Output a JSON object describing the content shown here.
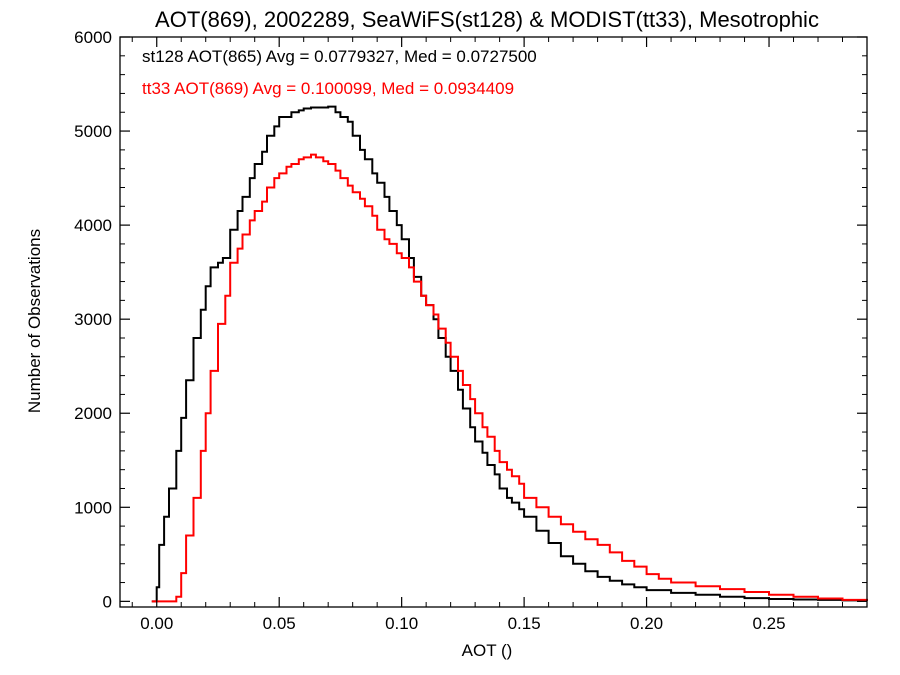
{
  "chart_data": {
    "type": "line",
    "title": "AOT(869), 2002289, SeaWiFS(st128) & MODIST(tt33), Mesotrophic",
    "xlabel": "AOT ()",
    "ylabel": "Number of Observations",
    "xlim": [
      -0.015,
      0.29
    ],
    "ylim": [
      -60,
      6000
    ],
    "xticks": [
      0.0,
      0.05,
      0.1,
      0.15,
      0.2,
      0.25
    ],
    "xtick_labels": [
      "0.00",
      "0.05",
      "0.10",
      "0.15",
      "0.20",
      "0.25"
    ],
    "yticks": [
      0,
      1000,
      2000,
      3000,
      4000,
      5000,
      6000
    ],
    "ytick_labels": [
      "0",
      "1000",
      "2000",
      "3000",
      "4000",
      "5000",
      "6000"
    ],
    "step": "histogram",
    "series": [
      {
        "name": "st128 AOT(865) Avg = 0.0779327, Med = 0.0727500",
        "color": "#000000",
        "x": [
          -0.002,
          0.0,
          0.001,
          0.003,
          0.005,
          0.008,
          0.01,
          0.012,
          0.015,
          0.018,
          0.02,
          0.022,
          0.025,
          0.027,
          0.03,
          0.033,
          0.035,
          0.038,
          0.04,
          0.043,
          0.045,
          0.048,
          0.05,
          0.052,
          0.055,
          0.058,
          0.06,
          0.063,
          0.065,
          0.068,
          0.07,
          0.073,
          0.075,
          0.078,
          0.08,
          0.083,
          0.085,
          0.088,
          0.09,
          0.093,
          0.095,
          0.098,
          0.1,
          0.103,
          0.105,
          0.108,
          0.11,
          0.113,
          0.115,
          0.118,
          0.12,
          0.123,
          0.125,
          0.128,
          0.13,
          0.133,
          0.135,
          0.138,
          0.14,
          0.143,
          0.145,
          0.148,
          0.15,
          0.155,
          0.16,
          0.165,
          0.17,
          0.175,
          0.18,
          0.185,
          0.19,
          0.195,
          0.2,
          0.21,
          0.22,
          0.23,
          0.24,
          0.25,
          0.26,
          0.27,
          0.28,
          0.29
        ],
        "y": [
          0,
          150,
          600,
          900,
          1200,
          1600,
          1950,
          2350,
          2800,
          3100,
          3350,
          3550,
          3600,
          3650,
          3950,
          4150,
          4300,
          4500,
          4650,
          4780,
          4950,
          5050,
          5150,
          5150,
          5200,
          5220,
          5240,
          5250,
          5250,
          5250,
          5260,
          5200,
          5150,
          5100,
          4950,
          4800,
          4700,
          4550,
          4450,
          4300,
          4150,
          4000,
          3850,
          3650,
          3450,
          3250,
          3150,
          3000,
          2800,
          2600,
          2450,
          2250,
          2050,
          1850,
          1700,
          1580,
          1450,
          1350,
          1200,
          1100,
          1050,
          980,
          900,
          750,
          620,
          480,
          400,
          320,
          260,
          220,
          180,
          150,
          120,
          90,
          70,
          50,
          35,
          25,
          20,
          15,
          10,
          5
        ]
      },
      {
        "name": "tt33 AOT(869) Avg = 0.100099, Med = 0.0934409",
        "color": "#ff0000",
        "x": [
          -0.002,
          0.0,
          0.005,
          0.008,
          0.01,
          0.012,
          0.015,
          0.018,
          0.02,
          0.022,
          0.025,
          0.028,
          0.03,
          0.033,
          0.035,
          0.038,
          0.04,
          0.043,
          0.045,
          0.048,
          0.05,
          0.053,
          0.055,
          0.058,
          0.06,
          0.063,
          0.065,
          0.068,
          0.07,
          0.073,
          0.075,
          0.078,
          0.08,
          0.083,
          0.085,
          0.088,
          0.09,
          0.093,
          0.095,
          0.098,
          0.1,
          0.103,
          0.105,
          0.108,
          0.11,
          0.113,
          0.115,
          0.118,
          0.12,
          0.123,
          0.125,
          0.128,
          0.13,
          0.133,
          0.135,
          0.138,
          0.14,
          0.143,
          0.145,
          0.148,
          0.15,
          0.155,
          0.16,
          0.165,
          0.17,
          0.175,
          0.18,
          0.185,
          0.19,
          0.195,
          0.2,
          0.205,
          0.21,
          0.22,
          0.23,
          0.24,
          0.25,
          0.26,
          0.27,
          0.28,
          0.29
        ],
        "y": [
          0,
          0,
          0,
          50,
          300,
          700,
          1100,
          1600,
          2000,
          2450,
          2950,
          3250,
          3600,
          3750,
          3900,
          4050,
          4150,
          4250,
          4400,
          4500,
          4550,
          4620,
          4650,
          4700,
          4720,
          4750,
          4720,
          4680,
          4650,
          4580,
          4500,
          4420,
          4350,
          4280,
          4200,
          4100,
          3950,
          3850,
          3800,
          3700,
          3650,
          3550,
          3400,
          3250,
          3150,
          3050,
          2900,
          2750,
          2600,
          2450,
          2300,
          2150,
          2000,
          1850,
          1750,
          1600,
          1480,
          1400,
          1330,
          1250,
          1100,
          1000,
          900,
          820,
          740,
          660,
          600,
          520,
          430,
          370,
          290,
          240,
          200,
          160,
          130,
          100,
          70,
          50,
          30,
          15,
          5
        ]
      }
    ],
    "grid": false,
    "legend_position": "top-left"
  }
}
